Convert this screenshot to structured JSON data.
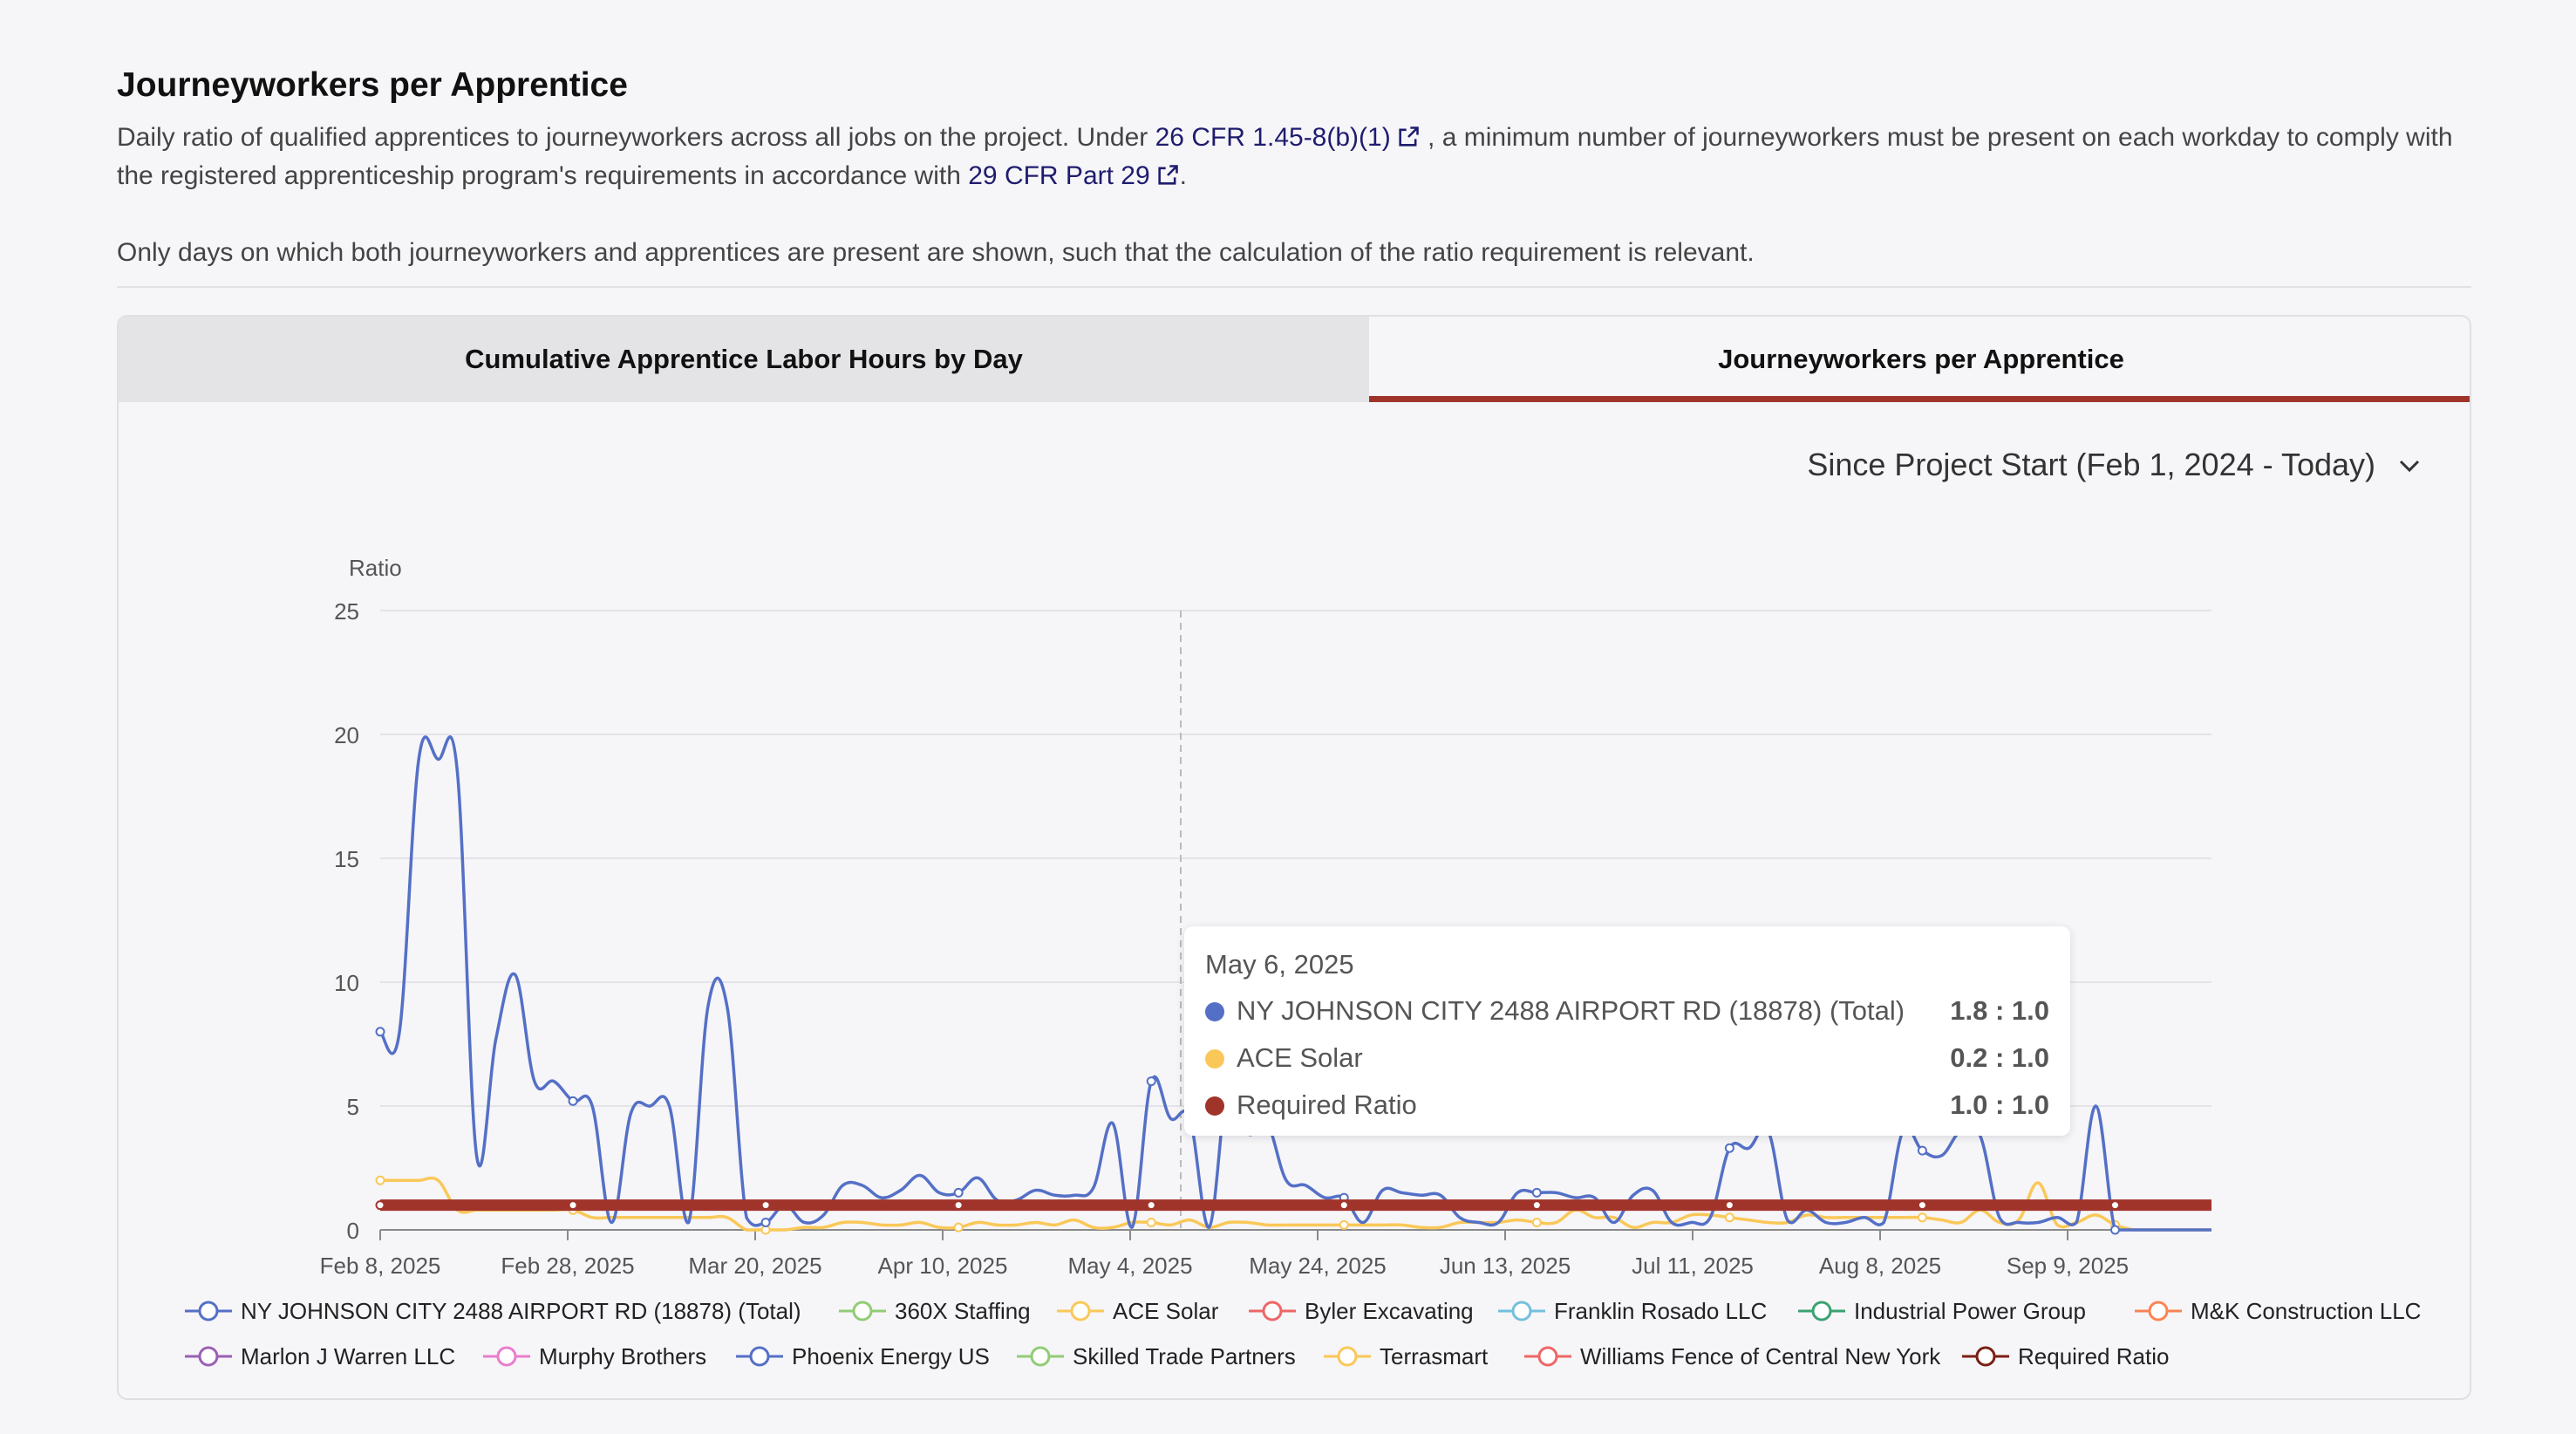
{
  "header": {
    "title": "Journeyworkers per Apprentice",
    "desc_part1": "Daily ratio of qualified apprentices to journeyworkers across all jobs on the project. Under ",
    "link1": "26 CFR 1.45-8(b)(1)",
    "desc_part2": " , a minimum number of journeyworkers must be present on each workday to comply with the registered apprenticeship program's requirements in accordance with ",
    "link2": "29 CFR Part 29",
    "desc_part3": ".",
    "note": "Only days on which both journeyworkers and apprentices are present are shown, such that the calculation of the ratio requirement is relevant."
  },
  "tabs": [
    {
      "label": "Cumulative Apprentice Labor Hours by Day",
      "active": false
    },
    {
      "label": "Journeyworkers per Apprentice",
      "active": true
    }
  ],
  "range_select": "Since Project Start (Feb 1, 2024 - Today)",
  "colors": {
    "total": "#5470c6",
    "ace": "#fac858",
    "required": "#a0342b",
    "tab_active": "#a0342b",
    "link": "#1f1c6e"
  },
  "tooltip": {
    "date": "May 6, 2025",
    "rows": [
      {
        "name": "NY JOHNSON CITY 2488 AIRPORT RD (18878) (Total)",
        "value": "1.8 : 1.0",
        "color": "#5470c6"
      },
      {
        "name": "ACE Solar",
        "value": "0.2 : 1.0",
        "color": "#fac858"
      },
      {
        "name": "Required Ratio",
        "value": "1.0 : 1.0",
        "color": "#a0342b"
      }
    ]
  },
  "chart_data": {
    "type": "line",
    "ylabel": "Ratio",
    "xlabel": "",
    "ylim": [
      0,
      25
    ],
    "yticks": [
      0,
      5,
      10,
      15,
      20,
      25
    ],
    "x_tick_labels": [
      "Feb 8, 2025",
      "Feb 28, 2025",
      "Mar 20, 2025",
      "Apr 10, 2025",
      "May 4, 2025",
      "May 24, 2025",
      "Jun 13, 2025",
      "Jul 11, 2025",
      "Aug 8, 2025",
      "Sep 9, 2025"
    ],
    "highlight_category": "May 4, 2025",
    "legend_position": "bottom",
    "series": [
      {
        "name": "NY JOHNSON CITY 2488 AIRPORT RD (18878) (Total)",
        "color": "#5470c6",
        "values": [
          8.0,
          8.0,
          19.0,
          19.0,
          18.5,
          3.0,
          7.7,
          10.3,
          6.0,
          6.0,
          5.2,
          5.0,
          0.3,
          4.7,
          5.0,
          5.0,
          0.3,
          9.0,
          9.0,
          0.5,
          0.3,
          1.0,
          0.3,
          0.6,
          1.8,
          1.8,
          1.3,
          1.6,
          2.2,
          1.5,
          1.5,
          2.1,
          1.2,
          1.2,
          1.6,
          1.4,
          1.4,
          1.7,
          4.3,
          0.1,
          6.0,
          4.5,
          4.5,
          0.1,
          6.0,
          3.9,
          4.3,
          2.0,
          1.8,
          1.3,
          1.3,
          0.3,
          1.6,
          1.5,
          1.4,
          1.4,
          0.5,
          0.3,
          0.3,
          1.5,
          1.5,
          1.5,
          1.3,
          1.3,
          0.3,
          1.4,
          1.6,
          0.3,
          0.3,
          0.5,
          3.3,
          3.3,
          4.0,
          0.4,
          0.8,
          0.3,
          0.3,
          0.5,
          0.3,
          4.0,
          3.2,
          3.0,
          4.0,
          3.8,
          0.5,
          0.3,
          0.3,
          0.5,
          0.3,
          5.0,
          0.0,
          0.0,
          0.0,
          0.0,
          0.0,
          0.0
        ]
      },
      {
        "name": "ACE Solar",
        "color": "#fac858",
        "values": [
          2.0,
          2.0,
          2.0,
          2.0,
          0.8,
          0.8,
          0.8,
          0.8,
          0.8,
          0.8,
          0.8,
          0.5,
          0.5,
          0.5,
          0.5,
          0.5,
          0.5,
          0.5,
          0.5,
          0.0,
          0.0,
          0.0,
          0.1,
          0.1,
          0.3,
          0.3,
          0.2,
          0.2,
          0.3,
          0.1,
          0.1,
          0.3,
          0.2,
          0.2,
          0.3,
          0.2,
          0.4,
          0.1,
          0.1,
          0.3,
          0.3,
          0.2,
          0.4,
          0.1,
          0.3,
          0.3,
          0.2,
          0.2,
          0.2,
          0.2,
          0.2,
          0.2,
          0.2,
          0.2,
          0.1,
          0.1,
          0.3,
          0.3,
          0.3,
          0.4,
          0.3,
          0.3,
          0.8,
          0.5,
          0.5,
          0.1,
          0.3,
          0.3,
          0.6,
          0.6,
          0.5,
          0.4,
          0.3,
          0.3,
          0.6,
          0.5,
          0.5,
          0.5,
          0.5,
          0.5,
          0.5,
          0.4,
          0.3,
          0.8,
          0.3,
          0.4,
          1.9,
          0.2,
          0.3,
          0.6,
          0.2,
          0.0,
          0.0,
          0.0,
          0.0,
          0.0
        ]
      },
      {
        "name": "Required Ratio",
        "color": "#a0342b",
        "values": [
          1.0,
          1.0,
          1.0,
          1.0,
          1.0,
          1.0,
          1.0,
          1.0,
          1.0,
          1.0,
          1.0,
          1.0,
          1.0,
          1.0,
          1.0,
          1.0,
          1.0,
          1.0,
          1.0,
          1.0,
          1.0,
          1.0,
          1.0,
          1.0,
          1.0,
          1.0,
          1.0,
          1.0,
          1.0,
          1.0,
          1.0,
          1.0,
          1.0,
          1.0,
          1.0,
          1.0,
          1.0,
          1.0,
          1.0,
          1.0,
          1.0,
          1.0,
          1.0,
          1.0,
          1.0,
          1.0,
          1.0,
          1.0,
          1.0,
          1.0,
          1.0,
          1.0,
          1.0,
          1.0,
          1.0,
          1.0,
          1.0,
          1.0,
          1.0,
          1.0,
          1.0,
          1.0,
          1.0,
          1.0,
          1.0,
          1.0,
          1.0,
          1.0,
          1.0,
          1.0,
          1.0,
          1.0,
          1.0,
          1.0,
          1.0,
          1.0,
          1.0,
          1.0,
          1.0,
          1.0,
          1.0,
          1.0,
          1.0,
          1.0,
          1.0,
          1.0,
          1.0,
          1.0,
          1.0,
          1.0,
          1.0,
          1.0,
          1.0,
          1.0,
          1.0,
          1.0
        ]
      }
    ],
    "legend": [
      {
        "name": "NY JOHNSON CITY 2488 AIRPORT RD (18878) (Total)",
        "color": "#5470c6"
      },
      {
        "name": "360X Staffing",
        "color": "#91cc75"
      },
      {
        "name": "ACE Solar",
        "color": "#fac858"
      },
      {
        "name": "Byler Excavating",
        "color": "#ee6666"
      },
      {
        "name": "Franklin Rosado LLC",
        "color": "#73c0de"
      },
      {
        "name": "Industrial Power Group",
        "color": "#3ba272"
      },
      {
        "name": "M&K Construction LLC",
        "color": "#fc8452"
      },
      {
        "name": "Marlon J Warren LLC",
        "color": "#9a60b4"
      },
      {
        "name": "Murphy Brothers",
        "color": "#ea7ccc"
      },
      {
        "name": "Phoenix Energy US",
        "color": "#5470c6"
      },
      {
        "name": "Skilled Trade Partners",
        "color": "#91cc75"
      },
      {
        "name": "Terrasmart",
        "color": "#fac858"
      },
      {
        "name": "Williams Fence of Central New York",
        "color": "#ee6666"
      },
      {
        "name": "Required Ratio",
        "color": "#7a1f14"
      }
    ]
  }
}
